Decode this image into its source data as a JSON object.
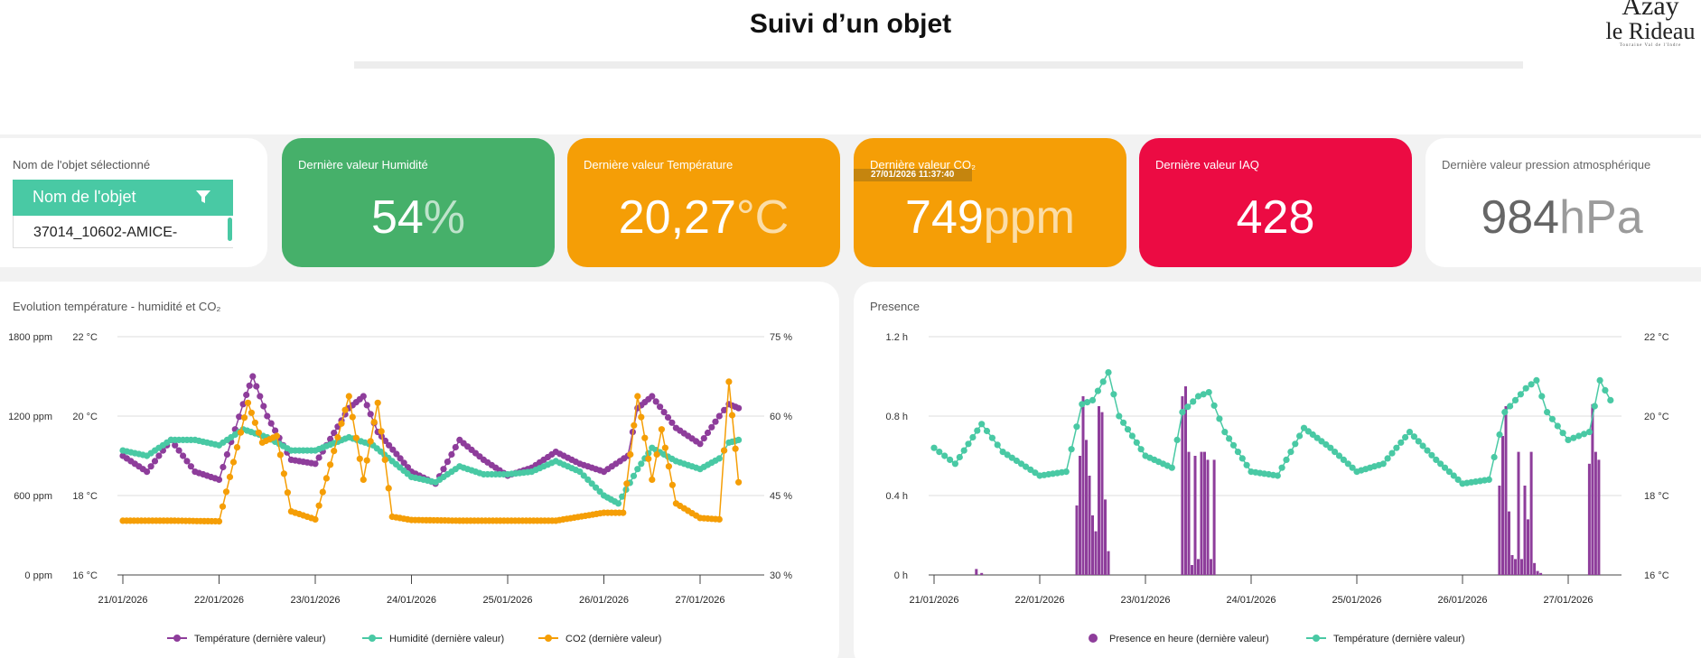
{
  "header": {
    "title": "Suivi d’un objet"
  },
  "logo": {
    "line1": "Azay",
    "line2": "le Rideau",
    "line3": "Touraine Val de l'Indre"
  },
  "selector": {
    "label": "Nom de l'objet sélectionné",
    "header": "Nom de l'objet",
    "value": "37014_10602-AMICE-"
  },
  "cards": {
    "humidity": {
      "label": "Dernière valeur Humidité",
      "value": "54",
      "unit": "%",
      "color": "#46b06a"
    },
    "temperature": {
      "label": "Dernière valeur Température",
      "value": "20,27",
      "unit": "°C",
      "color": "#f59e06"
    },
    "co2": {
      "label": "Dernière valeur CO₂",
      "timestamp": "27/01/2026 11:37:40",
      "value": "749",
      "unit": "ppm",
      "color": "#f59e06"
    },
    "iaq": {
      "label": "Dernière valeur IAQ",
      "value": "428",
      "color": "#ec0b43"
    },
    "pressure": {
      "label": "Dernière valeur pression atmosphérique",
      "value": "984",
      "unit": "hPa",
      "color": "#ffffff"
    }
  },
  "chart_data": [
    {
      "type": "line",
      "title": "Evolution température - humidité et CO₂",
      "x_labels": [
        "21/01/2026",
        "22/01/2026",
        "23/01/2026",
        "24/01/2026",
        "25/01/2026",
        "26/01/2026",
        "27/01/2026"
      ],
      "axes": {
        "co2_left": {
          "ticks": [
            "0 ppm",
            "600 ppm",
            "1200 ppm",
            "1800 ppm"
          ],
          "range": [
            0,
            1800
          ]
        },
        "temp_left": {
          "ticks": [
            "16 °C",
            "18 °C",
            "20 °C",
            "22 °C"
          ],
          "range": [
            16,
            22
          ]
        },
        "hum_right": {
          "ticks": [
            "30 %",
            "45 %",
            "60 %",
            "75 %"
          ],
          "range": [
            30,
            75
          ]
        }
      },
      "grid": true,
      "legend_position": "bottom",
      "series": [
        {
          "name": "Température (dernière valeur)",
          "color": "#8e3d9b",
          "axis": "temp_left",
          "points": [
            [
              0.0,
              19.0
            ],
            [
              0.25,
              18.6
            ],
            [
              0.5,
              19.4
            ],
            [
              0.75,
              18.6
            ],
            [
              1.0,
              18.4
            ],
            [
              1.25,
              20.3
            ],
            [
              1.35,
              21.0
            ],
            [
              1.5,
              20.0
            ],
            [
              1.75,
              18.9
            ],
            [
              2.0,
              18.8
            ],
            [
              2.35,
              20.2
            ],
            [
              2.5,
              20.5
            ],
            [
              2.65,
              19.6
            ],
            [
              3.0,
              18.6
            ],
            [
              3.25,
              18.3
            ],
            [
              3.5,
              19.4
            ],
            [
              3.75,
              18.9
            ],
            [
              4.0,
              18.5
            ],
            [
              4.25,
              18.7
            ],
            [
              4.5,
              19.1
            ],
            [
              4.75,
              18.8
            ],
            [
              5.0,
              18.6
            ],
            [
              5.25,
              19.0
            ],
            [
              5.35,
              20.2
            ],
            [
              5.5,
              20.5
            ],
            [
              5.75,
              19.7
            ],
            [
              6.0,
              19.3
            ],
            [
              6.2,
              20.0
            ],
            [
              6.3,
              20.3
            ],
            [
              6.4,
              20.2
            ]
          ]
        },
        {
          "name": "Humidité (dernière valeur)",
          "color": "#49c9a4",
          "axis": "hum_right",
          "points": [
            [
              0.0,
              53.5
            ],
            [
              0.25,
              52.5
            ],
            [
              0.5,
              55.5
            ],
            [
              0.75,
              55.5
            ],
            [
              1.0,
              54.5
            ],
            [
              1.25,
              57.5
            ],
            [
              1.5,
              56.0
            ],
            [
              1.75,
              53.5
            ],
            [
              2.0,
              53.5
            ],
            [
              2.35,
              56.0
            ],
            [
              2.6,
              54.5
            ],
            [
              3.0,
              48.5
            ],
            [
              3.25,
              47.5
            ],
            [
              3.5,
              50.5
            ],
            [
              3.75,
              49.0
            ],
            [
              4.0,
              49.0
            ],
            [
              4.25,
              49.5
            ],
            [
              4.5,
              51.5
            ],
            [
              4.75,
              49.5
            ],
            [
              5.0,
              45.0
            ],
            [
              5.15,
              43.5
            ],
            [
              5.35,
              50.0
            ],
            [
              5.5,
              54.0
            ],
            [
              5.75,
              51.5
            ],
            [
              6.0,
              50.0
            ],
            [
              6.2,
              52.0
            ],
            [
              6.3,
              55.0
            ],
            [
              6.4,
              55.5
            ]
          ]
        },
        {
          "name": "CO2 (dernière valeur)",
          "color": "#f59e06",
          "axis": "co2_left",
          "points": [
            [
              0.0,
              410
            ],
            [
              0.5,
              410
            ],
            [
              1.0,
              405
            ],
            [
              1.3,
              1300
            ],
            [
              1.45,
              1000
            ],
            [
              1.6,
              1050
            ],
            [
              1.75,
              480
            ],
            [
              2.0,
              420
            ],
            [
              2.35,
              1350
            ],
            [
              2.5,
              720
            ],
            [
              2.65,
              1300
            ],
            [
              2.8,
              440
            ],
            [
              3.0,
              415
            ],
            [
              3.5,
              410
            ],
            [
              4.0,
              410
            ],
            [
              4.5,
              410
            ],
            [
              5.0,
              470
            ],
            [
              5.2,
              470
            ],
            [
              5.35,
              1350
            ],
            [
              5.5,
              720
            ],
            [
              5.6,
              1100
            ],
            [
              5.75,
              540
            ],
            [
              6.0,
              430
            ],
            [
              6.2,
              420
            ],
            [
              6.3,
              1460
            ],
            [
              6.4,
              700
            ]
          ]
        }
      ]
    },
    {
      "type": "bar",
      "title": "Presence",
      "x_labels": [
        "21/01/2026",
        "22/01/2026",
        "23/01/2026",
        "24/01/2026",
        "25/01/2026",
        "26/01/2026",
        "27/01/2026"
      ],
      "axes": {
        "presence_left": {
          "ticks": [
            "0 h",
            "0.4 h",
            "0.8 h",
            "1.2 h"
          ],
          "range": [
            0,
            1.2
          ]
        },
        "temp_right": {
          "ticks": [
            "16 °C",
            "18 °C",
            "20 °C",
            "22 °C"
          ],
          "range": [
            16,
            22
          ]
        }
      },
      "grid": true,
      "legend_position": "bottom",
      "series": [
        {
          "name": "Presence en heure (dernière valeur)",
          "color": "#8e3d9b",
          "axis": "presence_left",
          "points": [
            [
              0.4,
              0.03
            ],
            [
              0.45,
              0.01
            ],
            [
              1.35,
              0.35
            ],
            [
              1.38,
              0.6
            ],
            [
              1.41,
              0.9
            ],
            [
              1.44,
              0.68
            ],
            [
              1.47,
              0.5
            ],
            [
              1.5,
              0.3
            ],
            [
              1.53,
              0.22
            ],
            [
              1.56,
              0.85
            ],
            [
              1.59,
              0.82
            ],
            [
              1.62,
              0.38
            ],
            [
              1.65,
              0.12
            ],
            [
              2.35,
              0.9
            ],
            [
              2.38,
              0.95
            ],
            [
              2.41,
              0.62
            ],
            [
              2.44,
              0.05
            ],
            [
              2.47,
              0.6
            ],
            [
              2.5,
              0.08
            ],
            [
              2.53,
              0.62
            ],
            [
              2.56,
              0.62
            ],
            [
              2.59,
              0.58
            ],
            [
              2.62,
              0.08
            ],
            [
              2.65,
              0.58
            ],
            [
              5.35,
              0.45
            ],
            [
              5.38,
              0.7
            ],
            [
              5.41,
              0.85
            ],
            [
              5.44,
              0.32
            ],
            [
              5.47,
              0.1
            ],
            [
              5.5,
              0.08
            ],
            [
              5.53,
              0.62
            ],
            [
              5.56,
              0.08
            ],
            [
              5.59,
              0.45
            ],
            [
              5.62,
              0.28
            ],
            [
              5.65,
              0.62
            ],
            [
              5.68,
              0.06
            ],
            [
              5.71,
              0.02
            ],
            [
              5.74,
              0.01
            ],
            [
              6.2,
              0.56
            ],
            [
              6.23,
              0.86
            ],
            [
              6.26,
              0.62
            ],
            [
              6.29,
              0.58
            ]
          ]
        },
        {
          "name": "Température (dernière valeur)",
          "color": "#49c9a4",
          "axis": "temp_right",
          "points": [
            [
              0.0,
              19.2
            ],
            [
              0.2,
              18.8
            ],
            [
              0.45,
              19.8
            ],
            [
              0.65,
              19.1
            ],
            [
              1.0,
              18.5
            ],
            [
              1.25,
              18.6
            ],
            [
              1.4,
              20.3
            ],
            [
              1.5,
              20.4
            ],
            [
              1.65,
              21.1
            ],
            [
              1.75,
              20.0
            ],
            [
              2.0,
              19.0
            ],
            [
              2.25,
              18.7
            ],
            [
              2.35,
              20.1
            ],
            [
              2.5,
              20.5
            ],
            [
              2.6,
              20.6
            ],
            [
              2.75,
              19.6
            ],
            [
              3.0,
              18.6
            ],
            [
              3.25,
              18.5
            ],
            [
              3.5,
              19.7
            ],
            [
              3.75,
              19.2
            ],
            [
              4.0,
              18.6
            ],
            [
              4.25,
              18.8
            ],
            [
              4.5,
              19.6
            ],
            [
              4.75,
              18.9
            ],
            [
              5.0,
              18.3
            ],
            [
              5.25,
              18.4
            ],
            [
              5.4,
              20.1
            ],
            [
              5.6,
              20.7
            ],
            [
              5.7,
              20.9
            ],
            [
              5.8,
              20.1
            ],
            [
              6.0,
              19.4
            ],
            [
              6.2,
              19.6
            ],
            [
              6.3,
              20.9
            ],
            [
              6.4,
              20.4
            ]
          ]
        }
      ]
    }
  ]
}
